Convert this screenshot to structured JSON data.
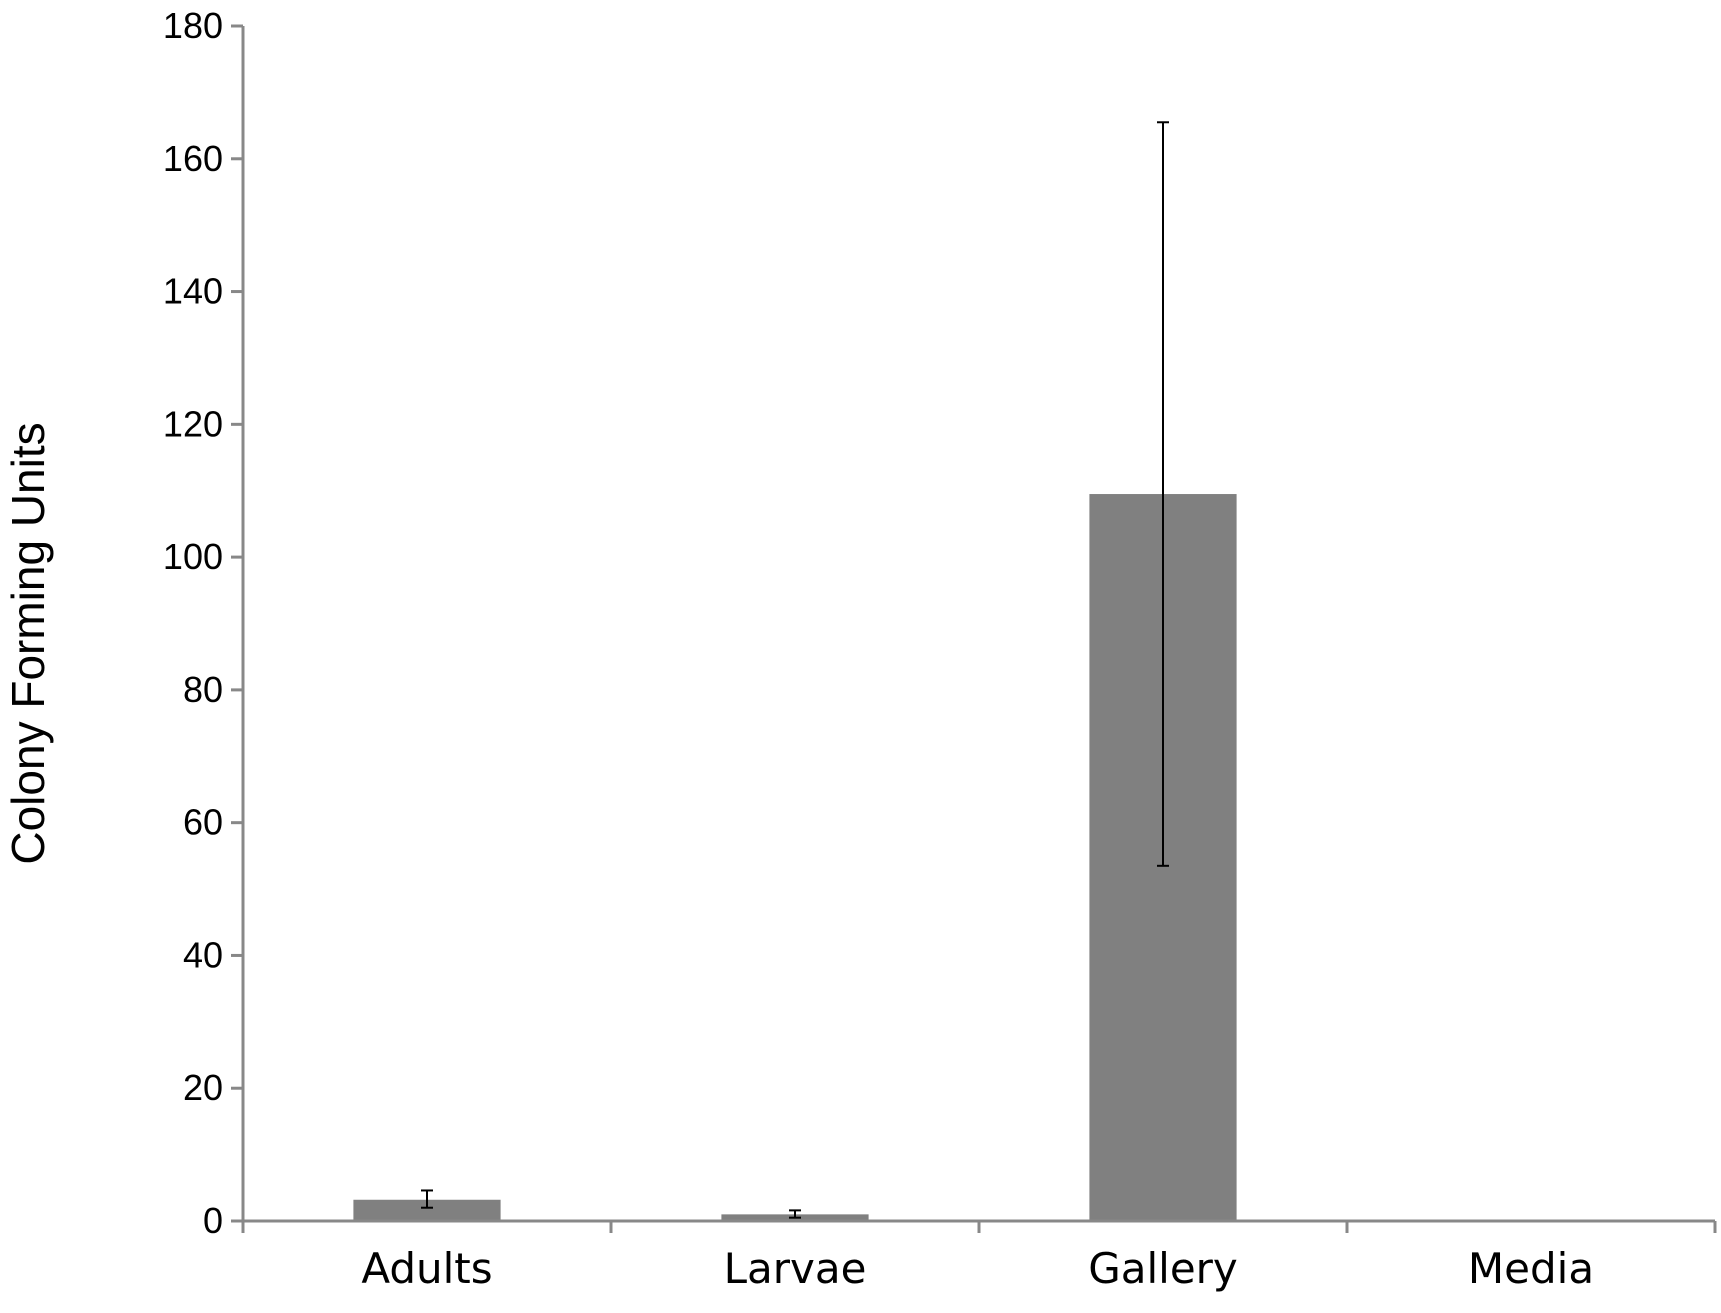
{
  "chart_data": {
    "type": "bar",
    "categories": [
      "Adults",
      "Larvae",
      "Gallery",
      "Media"
    ],
    "values": [
      3.2,
      1.0,
      109.5,
      0
    ],
    "error_bars": [
      {
        "low": 2.0,
        "high": 4.6
      },
      {
        "low": 0.5,
        "high": 1.6
      },
      {
        "low": 53.5,
        "high": 165.5
      },
      null
    ],
    "title": "",
    "xlabel": "",
    "ylabel": "Colony Forming Units",
    "ylim": [
      0,
      180
    ],
    "yticks": [
      0,
      20,
      40,
      60,
      80,
      100,
      120,
      140,
      160,
      180
    ],
    "grid": false,
    "legend": "none",
    "colors": {
      "bar": "#808080",
      "axis": "#888888",
      "error_bar": "#000000"
    }
  }
}
